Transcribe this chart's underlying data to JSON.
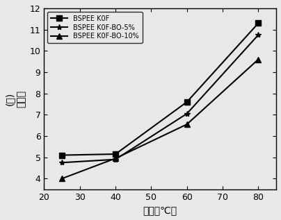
{
  "x": [
    25,
    40,
    60,
    80
  ],
  "series": [
    {
      "label": "BSPEE K0F",
      "y": [
        5.1,
        5.15,
        7.6,
        11.3
      ],
      "marker": "s",
      "color": "#000000",
      "linestyle": "-"
    },
    {
      "label": "BSPEE K0F-BO-5%",
      "y": [
        4.75,
        4.9,
        7.05,
        10.75
      ],
      "marker": "*",
      "color": "#000000",
      "linestyle": "-"
    },
    {
      "label": "BSPEE K0F-BO-10%",
      "y": [
        4.0,
        4.95,
        6.55,
        9.6
      ],
      "marker": "^",
      "color": "#000000",
      "linestyle": "-"
    }
  ],
  "xlabel_zh": "温度（℃）",
  "ylabel_line1": "(％)",
  "ylabel_line2": "吸水率",
  "xlim": [
    20,
    85
  ],
  "ylim": [
    3.5,
    12
  ],
  "yticks": [
    4,
    5,
    6,
    7,
    8,
    9,
    10,
    11,
    12
  ],
  "xticks": [
    20,
    30,
    40,
    50,
    60,
    70,
    80
  ],
  "legend_loc": "upper left",
  "bg_color": "#f0f0f0"
}
